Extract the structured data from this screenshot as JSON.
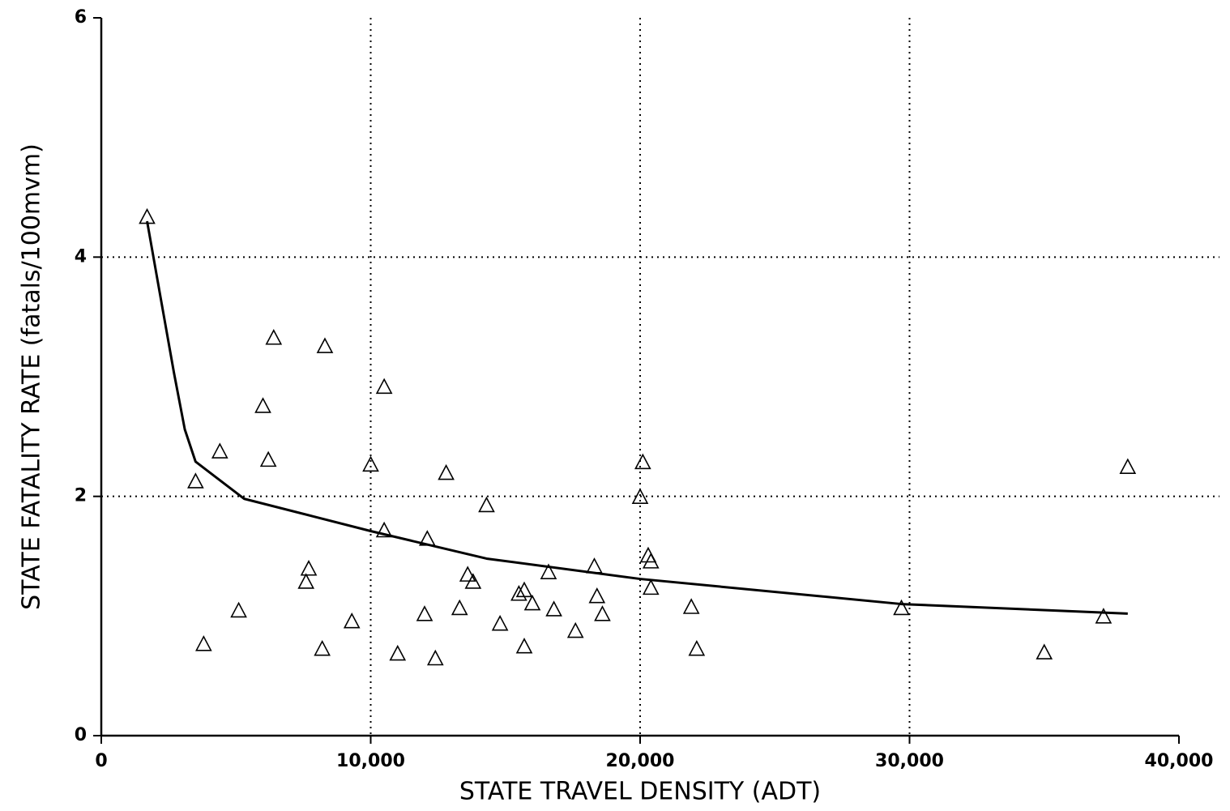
{
  "chart_data": {
    "type": "scatter",
    "x_label": "STATE TRAVEL DENSITY (ADT)",
    "y_label": "STATE FATALITY RATE (fatals/100mvm)",
    "xlim": [
      0,
      40000
    ],
    "ylim": [
      0,
      6
    ],
    "xticks": [
      0,
      {
        "value": 10000,
        "label": "10,000"
      },
      {
        "value": 20000,
        "label": "20,000"
      },
      {
        "value": 30000,
        "label": "30,000"
      },
      {
        "value": 40000,
        "label": "40,000"
      }
    ],
    "yticks": [
      0,
      2,
      4,
      6
    ],
    "grid": true,
    "series": [
      {
        "style": "triangle",
        "color": "#000000",
        "x": [
          1700,
          6400,
          8300,
          10500,
          6000,
          4400,
          6200,
          10000,
          12800,
          20100,
          38100,
          3500,
          20000,
          14300,
          10500,
          12100,
          20300,
          20400,
          7700,
          18300,
          7600,
          13600,
          13800,
          16600,
          20400,
          15500,
          15700,
          16000,
          18400,
          13300,
          16800,
          21900,
          29700,
          5100,
          12000,
          18600,
          37200,
          9300,
          14800,
          17600,
          3800,
          15700,
          8200,
          22100,
          11000,
          12400,
          35000
        ],
        "values": [
          4.33,
          3.32,
          3.25,
          2.91,
          2.75,
          2.37,
          2.3,
          2.26,
          2.19,
          2.28,
          2.24,
          2.12,
          1.99,
          1.92,
          1.71,
          1.64,
          1.5,
          1.45,
          1.39,
          1.41,
          1.28,
          1.34,
          1.28,
          1.36,
          1.23,
          1.18,
          1.21,
          1.1,
          1.16,
          1.06,
          1.05,
          1.07,
          1.06,
          1.04,
          1.01,
          1.01,
          0.99,
          0.95,
          0.93,
          0.87,
          0.76,
          0.74,
          0.72,
          0.72,
          0.68,
          0.64,
          0.69
        ]
      },
      {
        "style": "line",
        "color": "#000000",
        "x": [
          1700,
          2250,
          2700,
          3100,
          3500,
          5300,
          10000,
          14300,
          20000,
          29700,
          38100
        ],
        "values": [
          4.3,
          3.6,
          3.03,
          2.56,
          2.29,
          1.98,
          1.71,
          1.48,
          1.31,
          1.1,
          1.02
        ]
      }
    ]
  }
}
